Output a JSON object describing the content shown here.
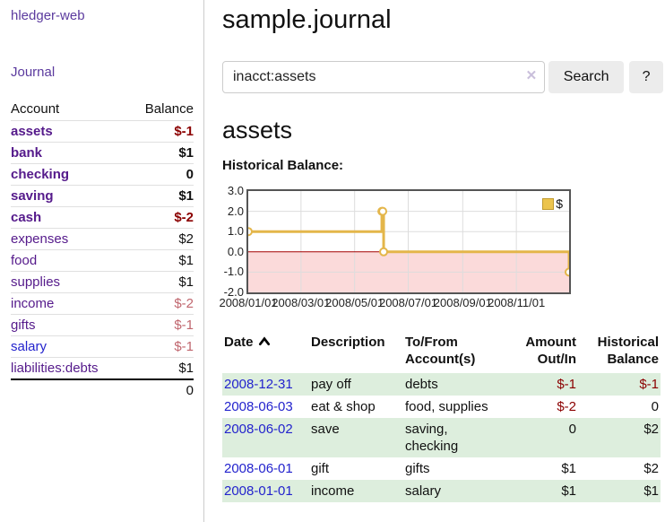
{
  "app": {
    "brand": "hledger-web"
  },
  "sidebar": {
    "journal_label": "Journal",
    "accounts": {
      "header_account": "Account",
      "header_balance": "Balance",
      "rows": [
        {
          "name": "assets",
          "balance": "$-1",
          "depth": 1,
          "in_account": true,
          "negative": "strong"
        },
        {
          "name": "bank",
          "balance": "$1",
          "depth": 2,
          "in_account": true,
          "negative": "none"
        },
        {
          "name": "checking",
          "balance": "0",
          "depth": 3,
          "in_account": true,
          "negative": "none"
        },
        {
          "name": "saving",
          "balance": "$1",
          "depth": 3,
          "in_account": true,
          "negative": "none"
        },
        {
          "name": "cash",
          "balance": "$-2",
          "depth": 2,
          "in_account": true,
          "negative": "strong"
        },
        {
          "name": "expenses",
          "balance": "$2",
          "depth": 1,
          "in_account": false,
          "negative": "none"
        },
        {
          "name": "food",
          "balance": "$1",
          "depth": 2,
          "in_account": false,
          "negative": "none"
        },
        {
          "name": "supplies",
          "balance": "$1",
          "depth": 2,
          "in_account": false,
          "negative": "none"
        },
        {
          "name": "income",
          "balance": "$-2",
          "depth": 1,
          "in_account": false,
          "negative": "soft"
        },
        {
          "name": "gifts",
          "balance": "$-1",
          "depth": 2,
          "in_account": false,
          "negative": "soft"
        },
        {
          "name": "salary",
          "balance": "$-1",
          "depth": 2,
          "in_account": false,
          "negative": "soft",
          "link_style": "blue"
        },
        {
          "name": "liabilities:debts",
          "balance": "$1",
          "depth": 1,
          "in_account": false,
          "negative": "none"
        }
      ],
      "total": "0"
    }
  },
  "main": {
    "title": "sample.journal",
    "search": {
      "value": "inacct:assets",
      "clear_glyph": "✕",
      "button_label": "Search",
      "help_label": "?"
    },
    "account_heading": "assets",
    "chart_label": "Historical Balance:",
    "register": {
      "headers": {
        "date": "Date",
        "sort_direction": "ascending",
        "description": "Description",
        "accounts": "To/From Account(s)",
        "amount": "Amount Out/In",
        "balance": "Historical Balance"
      },
      "rows": [
        {
          "date": "2008-12-31",
          "description": "pay off",
          "accounts": "debts",
          "amount": "$-1",
          "balance": "$-1",
          "amount_negative": true,
          "balance_negative": true,
          "shaded": true
        },
        {
          "date": "2008-06-03",
          "description": "eat & shop",
          "accounts": "food, supplies",
          "amount": "$-2",
          "balance": "0",
          "amount_negative": true,
          "balance_negative": false,
          "shaded": false
        },
        {
          "date": "2008-06-02",
          "description": "save",
          "accounts": "saving, checking",
          "amount": "0",
          "balance": "$2",
          "amount_negative": false,
          "balance_negative": false,
          "shaded": true
        },
        {
          "date": "2008-06-01",
          "description": "gift",
          "accounts": "gifts",
          "amount": "$1",
          "balance": "$2",
          "amount_negative": false,
          "balance_negative": false,
          "shaded": false
        },
        {
          "date": "2008-01-01",
          "description": "income",
          "accounts": "salary",
          "amount": "$1",
          "balance": "$1",
          "amount_negative": false,
          "balance_negative": false,
          "shaded": true
        }
      ]
    }
  },
  "chart_data": {
    "type": "line",
    "step": true,
    "title": "Historical Balance:",
    "series": [
      {
        "name": "$",
        "color": "#e4b64a",
        "points": [
          [
            "2008-01-01",
            1
          ],
          [
            "2008-06-01",
            2
          ],
          [
            "2008-06-02",
            2
          ],
          [
            "2008-06-03",
            0
          ],
          [
            "2008-12-31",
            -1
          ]
        ]
      }
    ],
    "xlim": [
      "2008-01-01",
      "2008-12-31"
    ],
    "ylim": [
      -2,
      3
    ],
    "yticks": [
      {
        "label": "3.0",
        "value": 3
      },
      {
        "label": "2.0",
        "value": 2
      },
      {
        "label": "1.0",
        "value": 1
      },
      {
        "label": "0.0",
        "value": 0
      },
      {
        "label": "-1.0",
        "value": -1
      },
      {
        "label": "-2.0",
        "value": -2
      }
    ],
    "xticks": [
      {
        "label": "2008/01/01",
        "date": "2008-01-01"
      },
      {
        "label": "2008/03/01",
        "date": "2008-03-01"
      },
      {
        "label": "2008/05/01",
        "date": "2008-05-01"
      },
      {
        "label": "2008/07/01",
        "date": "2008-07-01"
      },
      {
        "label": "2008/09/01",
        "date": "2008-09-01"
      },
      {
        "label": "2008/11/01",
        "date": "2008-11-01"
      }
    ],
    "legend": {
      "position": "top-right",
      "items": [
        {
          "label": "$",
          "color": "#ecc44d"
        }
      ]
    },
    "grid": true,
    "negative_region_fill": "#fbdada",
    "zero_line_color": "#a40000"
  }
}
